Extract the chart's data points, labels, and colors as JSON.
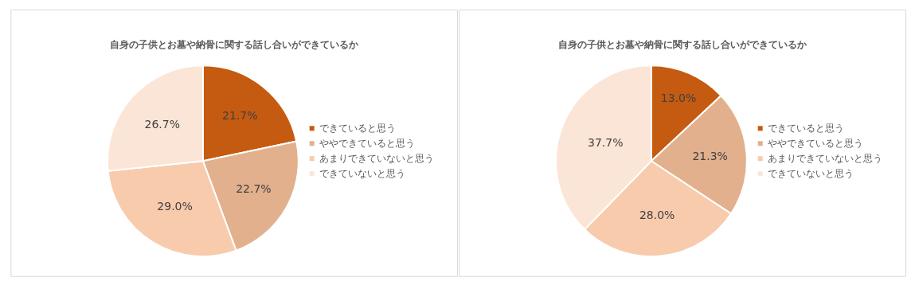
{
  "chart_data": [
    {
      "type": "pie",
      "title": "自身の子供とお墓や納骨に関する話し合いができているか",
      "categories": [
        "できていると思う",
        "ややできていると思う",
        "あまりできていないと思う",
        "できていないと思う"
      ],
      "values": [
        21.7,
        22.7,
        29.0,
        26.7
      ],
      "value_labels": [
        "21.7%",
        "22.7%",
        "29.0%",
        "26.7%"
      ],
      "colors": [
        "#c55a11",
        "#e2b08c",
        "#f8cbad",
        "#fbe5d6"
      ],
      "legend": "right"
    },
    {
      "type": "pie",
      "title": "自身の子供とお墓や納骨に関する話し合いができているか",
      "categories": [
        "できていると思う",
        "ややできていると思う",
        "あまりできていないと思う",
        "できていないと思う"
      ],
      "values": [
        13.0,
        21.3,
        28.0,
        37.7
      ],
      "value_labels": [
        "13.0%",
        "21.3%",
        "28.0%",
        "37.7%"
      ],
      "colors": [
        "#c55a11",
        "#e2b08c",
        "#f8cbad",
        "#fbe5d6"
      ],
      "legend": "right"
    }
  ]
}
